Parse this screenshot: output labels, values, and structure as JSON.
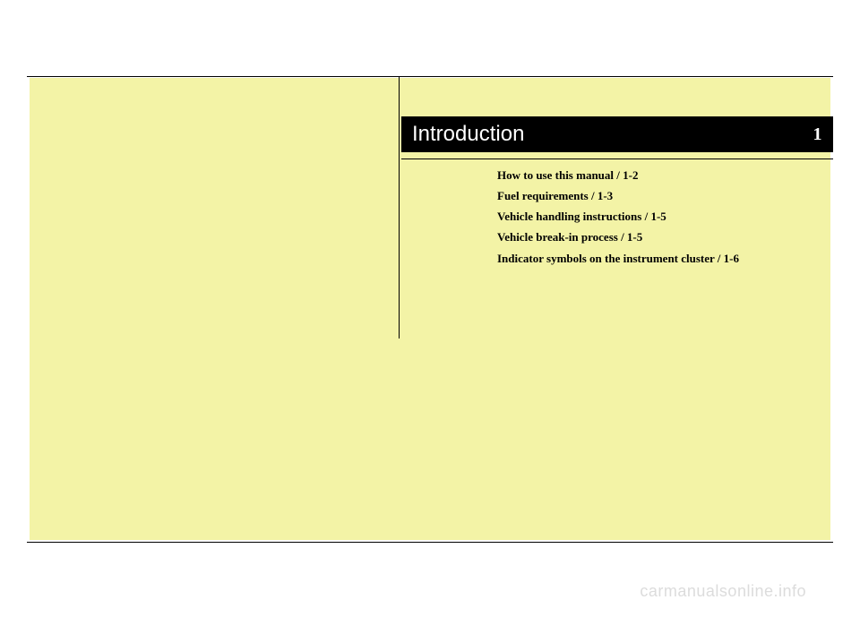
{
  "chapter": {
    "title": "Introduction",
    "number": "1"
  },
  "toc": {
    "items": [
      "How to use this manual / 1-2",
      "Fuel requirements / 1-3",
      "Vehicle handling instructions / 1-5",
      "Vehicle break-in process / 1-5",
      "Indicator symbols on the instrument cluster / 1-6"
    ]
  },
  "watermark": "carmanualsonline.info",
  "colors": {
    "page_bg": "#ffffff",
    "content_bg": "#f3f3a6",
    "bar_bg": "#000000",
    "bar_text": "#ffffff",
    "text": "#000000",
    "watermark": "#dcdcdc"
  }
}
